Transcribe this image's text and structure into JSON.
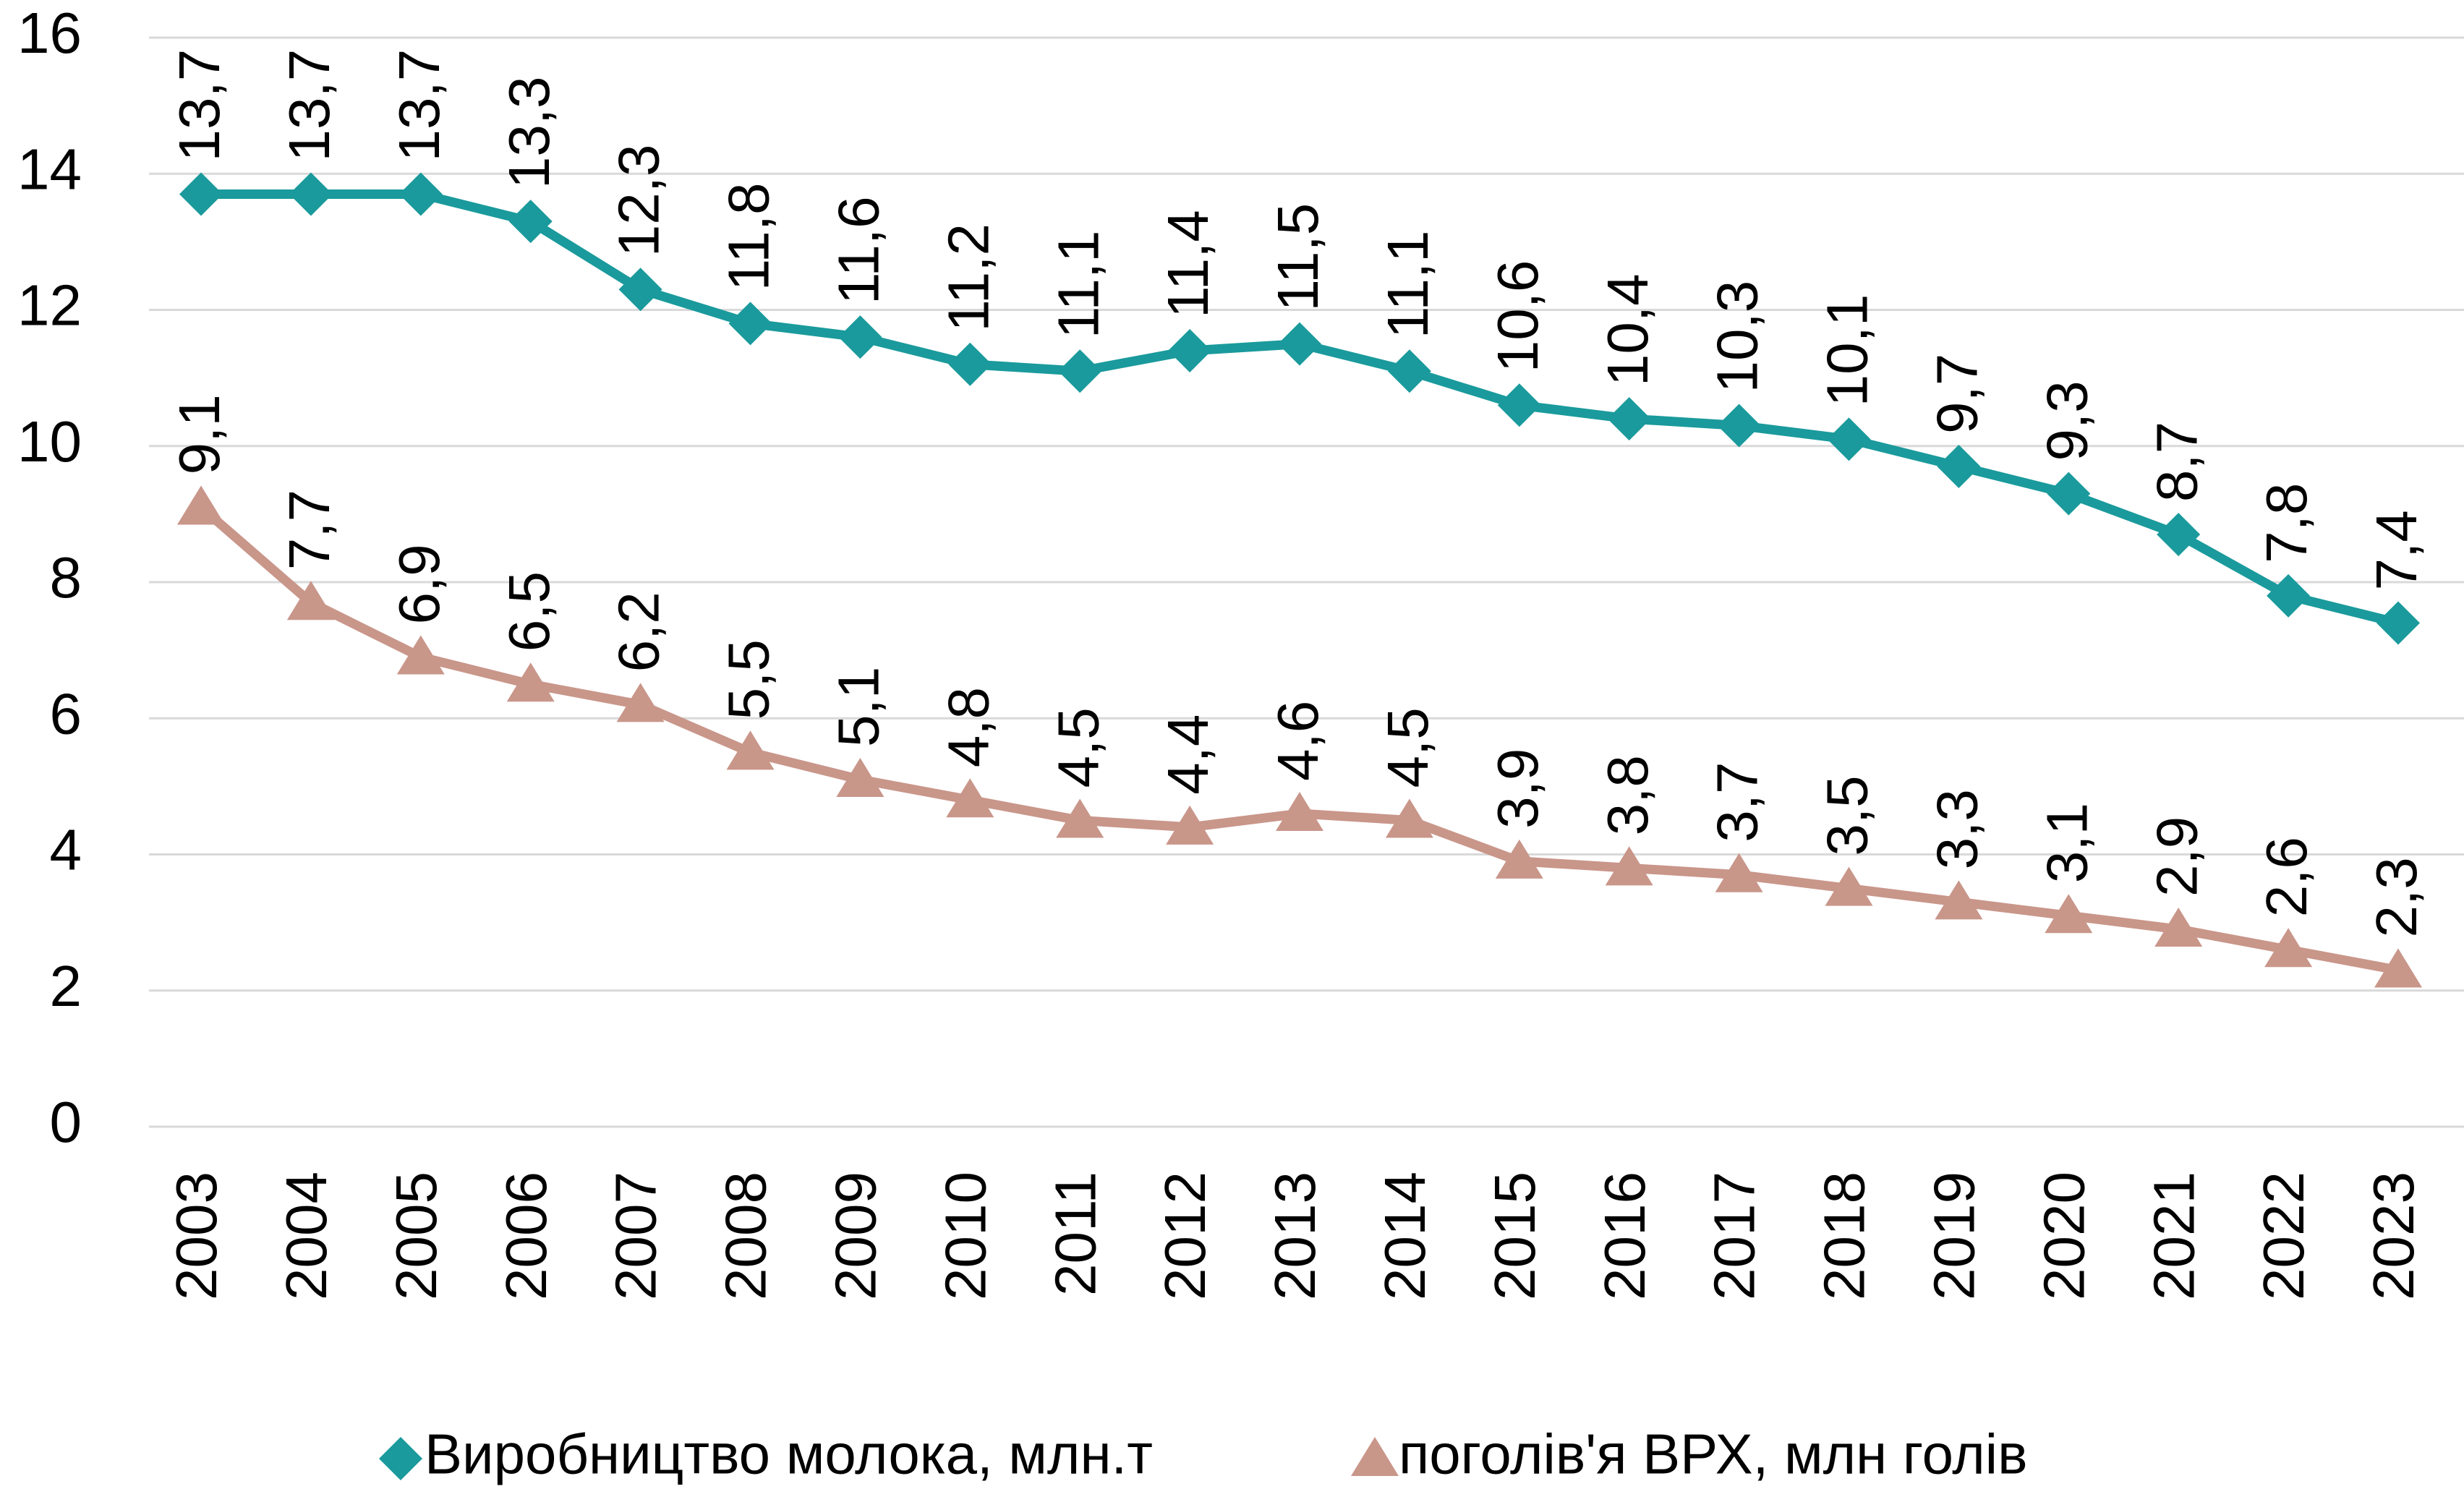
{
  "chart_data": {
    "type": "line",
    "categories": [
      "2003",
      "2004",
      "2005",
      "2006",
      "2007",
      "2008",
      "2009",
      "2010",
      "2011",
      "2012",
      "2013",
      "2014",
      "2015",
      "2016",
      "2017",
      "2018",
      "2019",
      "2020",
      "2021",
      "2022",
      "2023"
    ],
    "series": [
      {
        "name": "Виробництво молока, млн.т",
        "color": "#1a9a9c",
        "marker": "diamond",
        "values": [
          13.7,
          13.7,
          13.7,
          13.3,
          12.3,
          11.8,
          11.6,
          11.2,
          11.1,
          11.4,
          11.5,
          11.1,
          10.6,
          10.4,
          10.3,
          10.1,
          9.7,
          9.3,
          8.7,
          7.8,
          7.4
        ],
        "value_labels": [
          "13,7",
          "13,7",
          "13,7",
          "13,3",
          "12,3",
          "11,8",
          "11,6",
          "11,2",
          "11,1",
          "11,4",
          "11,5",
          "11,1",
          "10,6",
          "10,4",
          "10,3",
          "10,1",
          "9,7",
          "9,3",
          "8,7",
          "7,8",
          "7,4"
        ]
      },
      {
        "name": "поголів'я ВРХ, млн голів",
        "color": "#c9968a",
        "marker": "triangle",
        "values": [
          9.1,
          7.7,
          6.9,
          6.5,
          6.2,
          5.5,
          5.1,
          4.8,
          4.5,
          4.4,
          4.6,
          4.5,
          3.9,
          3.8,
          3.7,
          3.5,
          3.3,
          3.1,
          2.9,
          2.6,
          2.3
        ],
        "value_labels": [
          "9,1",
          "7,7",
          "6,9",
          "6,5",
          "6,2",
          "5,5",
          "5,1",
          "4,8",
          "4,5",
          "4,4",
          "4,6",
          "4,5",
          "3,9",
          "3,8",
          "3,7",
          "3,5",
          "3,3",
          "3,1",
          "2,9",
          "2,6",
          "2,3"
        ]
      }
    ],
    "ylim": [
      0,
      16
    ],
    "yticks": [
      0,
      2,
      4,
      6,
      8,
      10,
      12,
      14,
      16
    ],
    "grid": true,
    "legend": "bottom"
  }
}
